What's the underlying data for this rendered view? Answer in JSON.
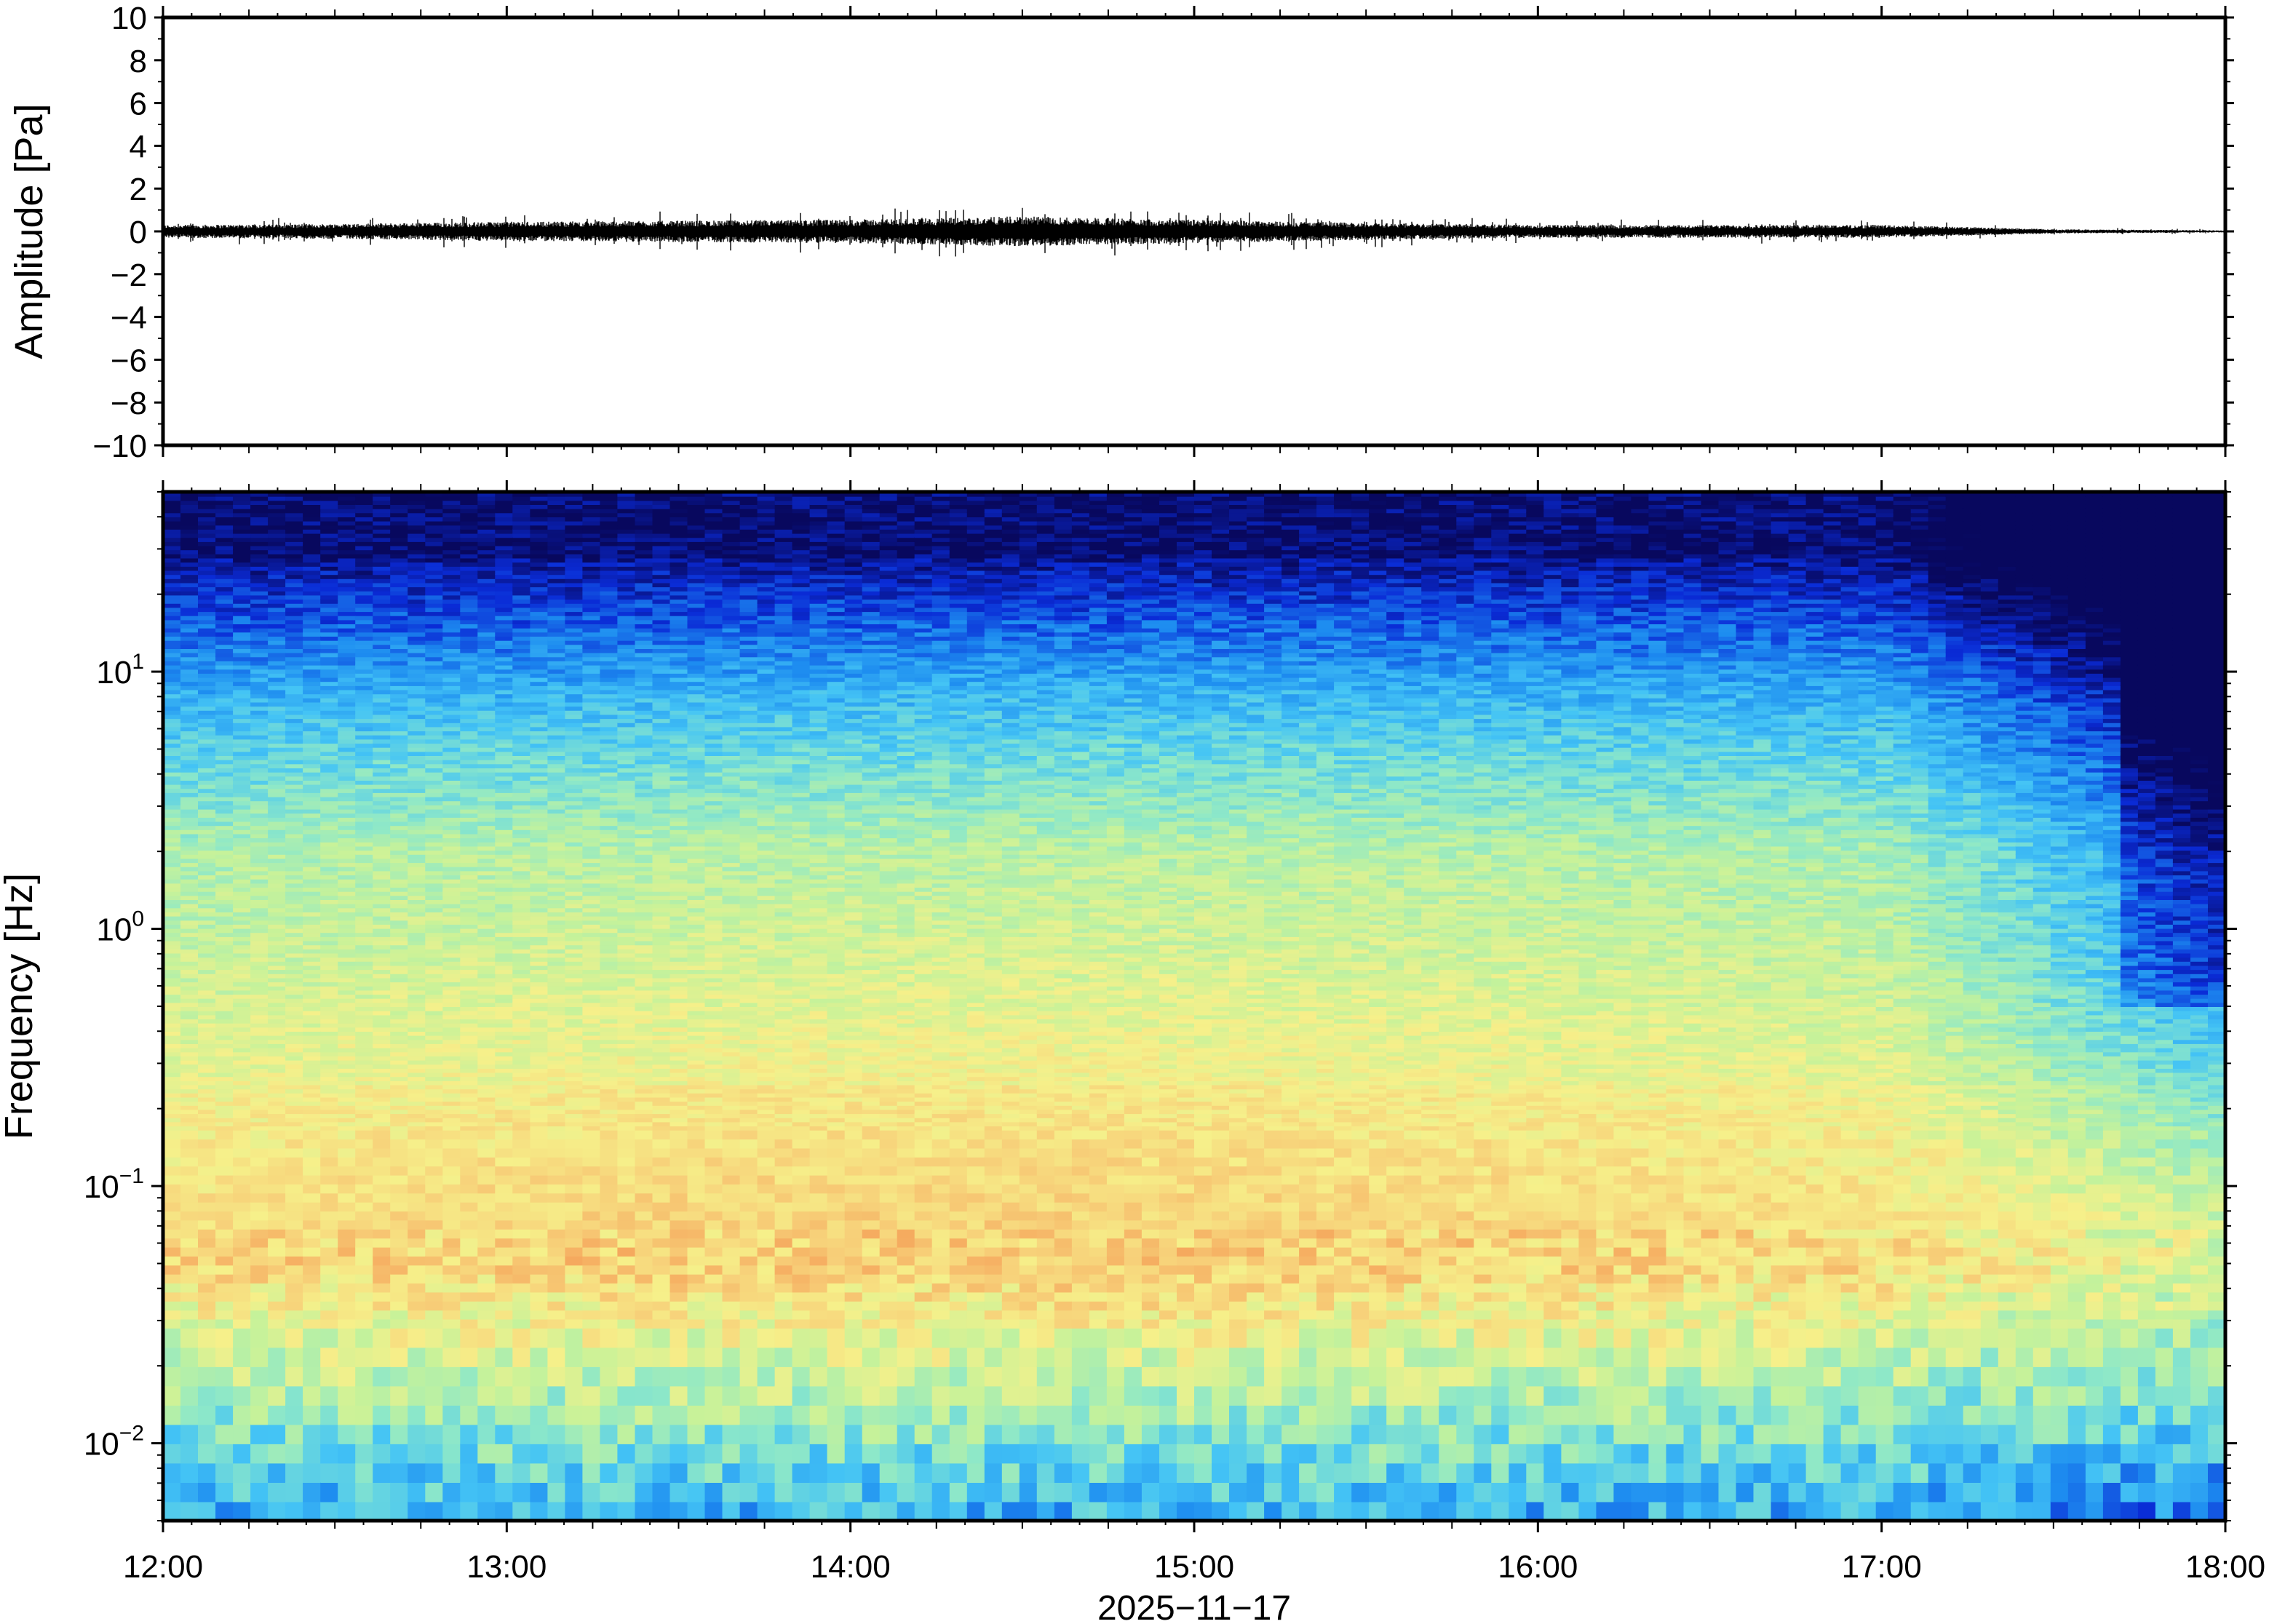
{
  "chart_data": [
    {
      "type": "line",
      "panel": "waveform",
      "ylabel": "Amplitude [Pa]",
      "ylim": [
        -10,
        10
      ],
      "yticks": [
        -10,
        -8,
        -6,
        -4,
        -2,
        0,
        2,
        4,
        6,
        8,
        10
      ],
      "ytick_labels": [
        "−10",
        "−8",
        "−6",
        "−4",
        "−2",
        "0",
        "2",
        "4",
        "6",
        "8",
        "10"
      ],
      "x_range": [
        "12:00",
        "18:00"
      ],
      "series": [
        {
          "x_hours": [
            12.0,
            12.5,
            13.0,
            13.5,
            14.0,
            14.5,
            15.0,
            15.5,
            16.0,
            16.5,
            17.0,
            17.5,
            18.0
          ],
          "envelope_pa": [
            0.3,
            0.35,
            0.45,
            0.5,
            0.55,
            0.7,
            0.55,
            0.4,
            0.3,
            0.3,
            0.3,
            0.1,
            0.05
          ],
          "peak_pa": 1.1
        }
      ]
    },
    {
      "type": "heatmap",
      "panel": "spectrogram",
      "ylabel": "Frequency [Hz]",
      "yscale": "log",
      "ylim": [
        0.005,
        50
      ],
      "yticks": [
        0.01,
        0.1,
        1,
        10
      ],
      "ytick_labels": [
        {
          "base": "10",
          "exp": "−2"
        },
        {
          "base": "10",
          "exp": "−1"
        },
        {
          "base": "10",
          "exp": "0"
        },
        {
          "base": "10",
          "exp": "1"
        }
      ],
      "xlabel": "2025−11−17",
      "x_range": [
        "12:00",
        "18:00"
      ],
      "xtick_labels": [
        "12:00",
        "13:00",
        "14:00",
        "15:00",
        "16:00",
        "17:00",
        "18:00"
      ],
      "colormap": [
        "#08085e",
        "#0a2bd6",
        "#1d8cf0",
        "#44c4f5",
        "#8ee8c8",
        "#c6f29a",
        "#f6f08a",
        "#f7d079",
        "#f5a35a"
      ]
    }
  ]
}
